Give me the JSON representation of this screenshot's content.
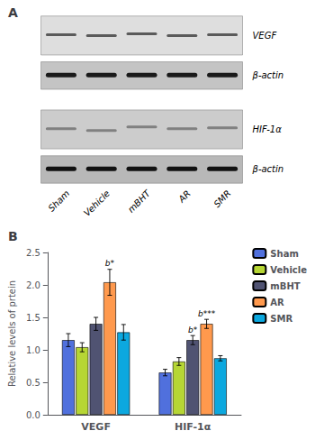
{
  "chart_data": [
    {
      "type": "blot",
      "title": "A",
      "categories": [
        "Sham",
        "Vehicle",
        "mBHT",
        "AR",
        "SMR"
      ],
      "annotations": [
        "VEGF",
        "β-actin",
        "HIF-1α",
        "β-actin"
      ]
    },
    {
      "type": "bar",
      "title": "B",
      "categories": [
        "VEGF",
        "HIF-1α"
      ],
      "ylabel": "Relative levels of prtein",
      "series": [
        {
          "name": "Sham",
          "values": [
            1.15,
            0.65
          ],
          "errors": [
            0.1,
            0.05
          ]
        },
        {
          "name": "Vehicle",
          "values": [
            1.04,
            0.82
          ],
          "errors": [
            0.07,
            0.06
          ]
        },
        {
          "name": "mBHT",
          "values": [
            1.4,
            1.15
          ],
          "errors": [
            0.1,
            0.07
          ],
          "annotations": [
            null,
            "b*"
          ]
        },
        {
          "name": "AR",
          "values": [
            2.04,
            1.4
          ],
          "errors": [
            0.2,
            0.07
          ],
          "annotations": [
            "b*",
            "b***"
          ]
        },
        {
          "name": "SMR",
          "values": [
            1.27,
            0.87
          ],
          "errors": [
            0.12,
            0.04
          ]
        }
      ],
      "ylim": [
        0,
        2.5
      ],
      "yticks": [
        {
          "value": 0.0,
          "label": "0.0"
        },
        0.5,
        {
          "value": 1.0,
          "label": "1.0"
        },
        1.5,
        {
          "value": 2.0,
          "label": "2.0"
        },
        2.5
      ],
      "grid": false,
      "legend": "right"
    }
  ]
}
